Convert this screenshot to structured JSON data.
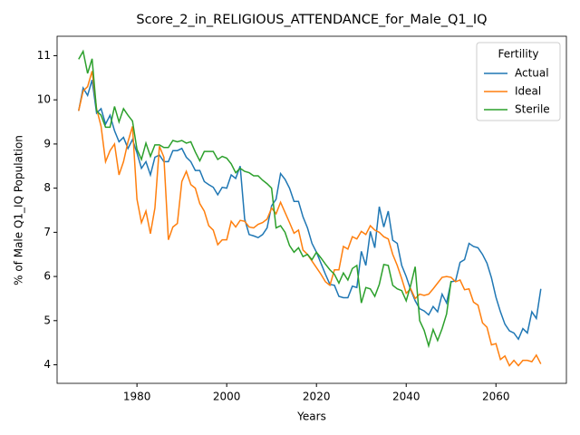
{
  "chart_data": {
    "type": "line",
    "title": "Score_2_in_RELIGIOUS_ATTENDANCE_for_Male_Q1_IQ",
    "xlabel": "Years",
    "ylabel": "% of Male Q1_IQ Population",
    "legend_title": "Fertility",
    "legend": "upper right",
    "xlim": [
      1962.2,
      2075.7
    ],
    "ylim": [
      3.58,
      11.44
    ],
    "xticks": [
      1980,
      2000,
      2020,
      2040,
      2060
    ],
    "yticks": [
      4,
      5,
      6,
      7,
      8,
      9,
      10,
      11
    ],
    "x": [
      1967,
      1968,
      1969,
      1970,
      1971,
      1972,
      1973,
      1974,
      1975,
      1976,
      1977,
      1978,
      1979,
      1980,
      1981,
      1982,
      1983,
      1984,
      1985,
      1986,
      1987,
      1988,
      1989,
      1990,
      1991,
      1992,
      1993,
      1994,
      1995,
      1996,
      1997,
      1998,
      1999,
      2000,
      2001,
      2002,
      2003,
      2004,
      2005,
      2006,
      2007,
      2008,
      2009,
      2010,
      2011,
      2012,
      2013,
      2014,
      2015,
      2016,
      2017,
      2018,
      2019,
      2020,
      2021,
      2022,
      2023,
      2024,
      2025,
      2026,
      2027,
      2028,
      2029,
      2030,
      2031,
      2032,
      2033,
      2034,
      2035,
      2036,
      2037,
      2038,
      2039,
      2040,
      2041,
      2042,
      2043,
      2044,
      2045,
      2046,
      2047,
      2048,
      2049,
      2050,
      2051,
      2052,
      2053,
      2054,
      2055,
      2056,
      2057,
      2058,
      2059,
      2060,
      2061,
      2062,
      2063,
      2064,
      2065,
      2066,
      2067,
      2068,
      2069,
      2070
    ],
    "series": [
      {
        "name": "Actual",
        "color": "#1f77b4",
        "values": [
          9.75,
          10.27,
          10.1,
          10.45,
          9.7,
          9.8,
          9.45,
          9.65,
          9.3,
          9.05,
          9.15,
          8.9,
          9.1,
          8.8,
          8.45,
          8.6,
          8.3,
          8.7,
          8.75,
          8.6,
          8.6,
          8.85,
          8.85,
          8.9,
          8.7,
          8.6,
          8.4,
          8.4,
          8.15,
          8.08,
          8.02,
          7.85,
          8.02,
          8.0,
          8.3,
          8.22,
          8.5,
          7.3,
          6.95,
          6.92,
          6.88,
          6.95,
          7.1,
          7.6,
          7.75,
          8.33,
          8.2,
          8.0,
          7.7,
          7.7,
          7.35,
          7.1,
          6.75,
          6.55,
          6.3,
          6.05,
          5.82,
          5.8,
          5.55,
          5.52,
          5.52,
          5.78,
          5.75,
          6.57,
          6.25,
          7.02,
          6.65,
          7.58,
          7.12,
          7.48,
          6.82,
          6.75,
          6.25,
          6.0,
          5.7,
          5.45,
          5.27,
          5.22,
          5.13,
          5.32,
          5.2,
          5.6,
          5.4,
          5.88,
          5.9,
          6.32,
          6.38,
          6.75,
          6.68,
          6.65,
          6.5,
          6.3,
          5.97,
          5.53,
          5.2,
          4.92,
          4.77,
          4.72,
          4.58,
          4.82,
          4.72,
          5.2,
          5.05,
          5.72
        ]
      },
      {
        "name": "Ideal",
        "color": "#ff7f0e",
        "values": [
          9.75,
          10.2,
          10.3,
          10.65,
          9.8,
          9.4,
          8.6,
          8.85,
          9.0,
          8.3,
          8.6,
          9.05,
          9.4,
          7.75,
          7.22,
          7.48,
          6.97,
          7.55,
          8.95,
          8.7,
          6.83,
          7.12,
          7.2,
          8.15,
          8.38,
          8.08,
          8.0,
          7.65,
          7.48,
          7.15,
          7.05,
          6.72,
          6.83,
          6.83,
          7.25,
          7.12,
          7.27,
          7.25,
          7.12,
          7.1,
          7.18,
          7.22,
          7.3,
          7.55,
          7.42,
          7.68,
          7.45,
          7.22,
          6.98,
          7.05,
          6.6,
          6.5,
          6.35,
          6.2,
          6.05,
          5.88,
          5.8,
          6.15,
          6.15,
          6.68,
          6.62,
          6.9,
          6.85,
          7.02,
          6.95,
          7.15,
          7.05,
          7.0,
          6.9,
          6.85,
          6.5,
          6.25,
          5.95,
          5.62,
          5.72,
          5.5,
          5.6,
          5.57,
          5.6,
          5.72,
          5.85,
          5.98,
          6.0,
          5.98,
          5.88,
          5.92,
          5.7,
          5.72,
          5.42,
          5.35,
          4.95,
          4.85,
          4.45,
          4.48,
          4.12,
          4.2,
          3.98,
          4.1,
          3.98,
          4.1,
          4.1,
          4.07,
          4.22,
          4.02
        ]
      },
      {
        "name": "Sterile",
        "color": "#2ca02c",
        "values": [
          10.92,
          11.1,
          10.6,
          10.93,
          9.75,
          9.65,
          9.38,
          9.38,
          9.85,
          9.5,
          9.8,
          9.65,
          9.52,
          8.88,
          8.65,
          9.02,
          8.72,
          8.98,
          8.98,
          8.92,
          8.92,
          9.08,
          9.05,
          9.08,
          9.02,
          9.05,
          8.82,
          8.62,
          8.83,
          8.83,
          8.83,
          8.65,
          8.72,
          8.68,
          8.55,
          8.35,
          8.45,
          8.38,
          8.35,
          8.28,
          8.28,
          8.18,
          8.1,
          8.0,
          7.1,
          7.15,
          7.0,
          6.7,
          6.55,
          6.65,
          6.45,
          6.5,
          6.38,
          6.55,
          6.42,
          6.28,
          6.15,
          6.05,
          5.85,
          6.08,
          5.92,
          6.18,
          6.25,
          5.4,
          5.75,
          5.72,
          5.55,
          5.82,
          6.27,
          6.25,
          5.8,
          5.72,
          5.68,
          5.45,
          5.8,
          6.22,
          5.0,
          4.78,
          4.43,
          4.8,
          4.55,
          4.82,
          5.15,
          5.9,
          null,
          null,
          null,
          null,
          null,
          null,
          null,
          null,
          null,
          null,
          null,
          null,
          null,
          null,
          null,
          null,
          null,
          null,
          null,
          null
        ]
      }
    ]
  }
}
